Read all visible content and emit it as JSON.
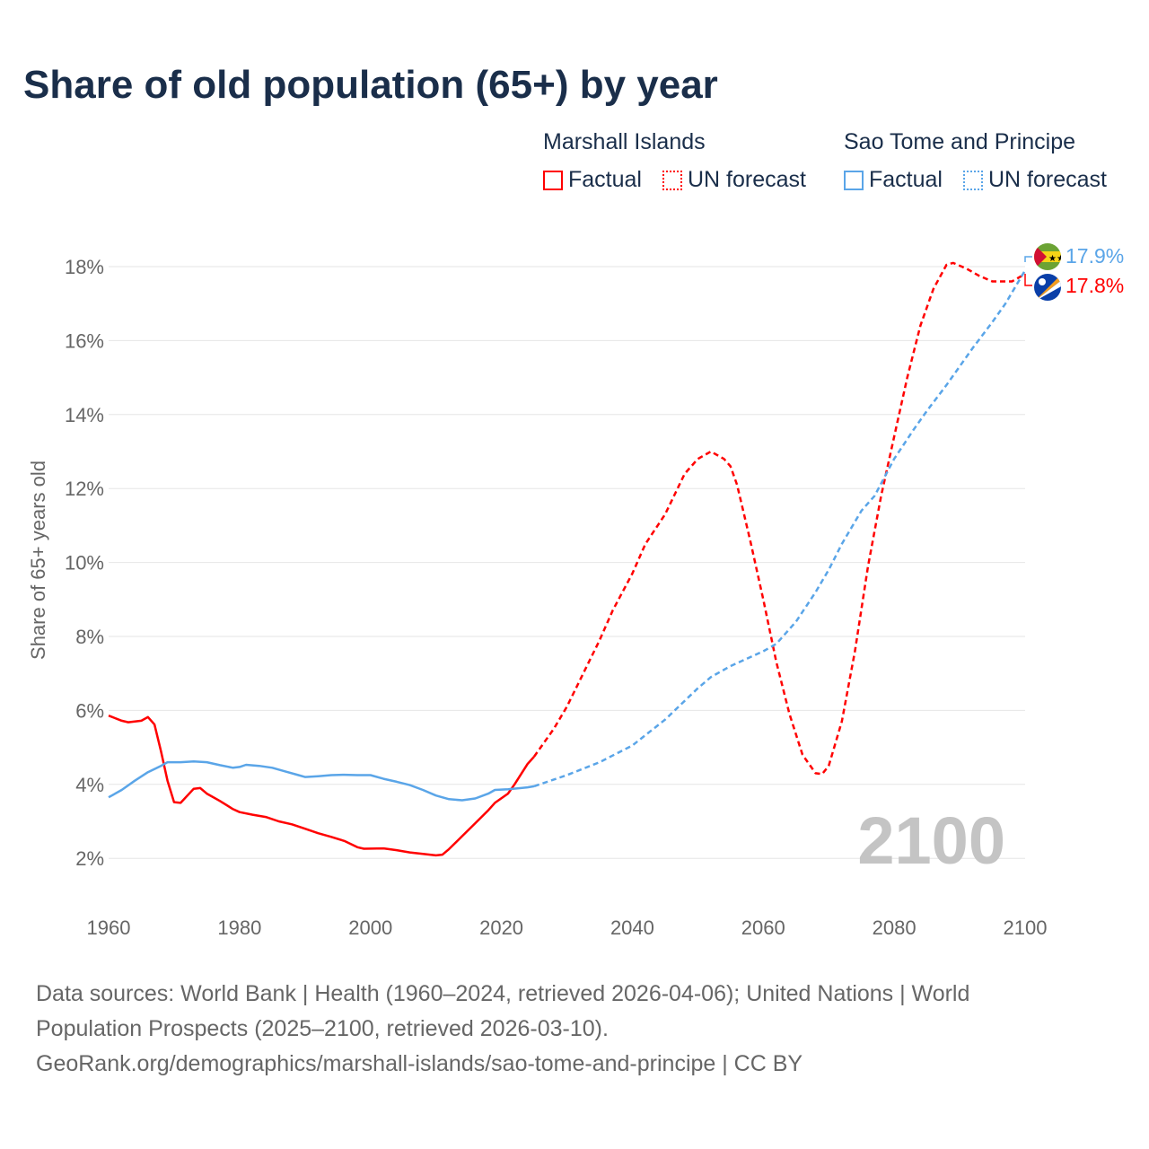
{
  "title": "Share of old population (65+) by year",
  "legend": {
    "groups": [
      {
        "name": "Marshall Islands",
        "color": "#ff0000",
        "factual": "Factual",
        "forecast": "UN forecast"
      },
      {
        "name": "Sao Tome and Principe",
        "color": "#5aa5e8",
        "factual": "Factual",
        "forecast": "UN forecast"
      }
    ]
  },
  "chart_data": {
    "type": "line",
    "title": "Share of old population (65+) by year",
    "xlabel": "",
    "ylabel": "Share of 65+ years old",
    "xlim": [
      1960,
      2100
    ],
    "ylim": [
      1,
      18.9
    ],
    "xticks": [
      1960,
      1980,
      2000,
      2020,
      2040,
      2060,
      2080,
      2100
    ],
    "yticks": [
      2,
      4,
      6,
      8,
      10,
      12,
      14,
      16,
      18
    ],
    "ytick_format": "%",
    "grid": true,
    "year_watermark": "2100",
    "series": [
      {
        "name": "Marshall Islands",
        "kind": "Factual",
        "color": "#ff0000",
        "x": [
          1960,
          1962,
          1963,
          1965,
          1966,
          1967,
          1968,
          1969,
          1970,
          1971,
          1973,
          1974,
          1975,
          1977,
          1979,
          1980,
          1982,
          1984,
          1986,
          1988,
          1990,
          1992,
          1994,
          1996,
          1998,
          1999,
          2002,
          2004,
          2006,
          2008,
          2010,
          2011,
          2012,
          2014,
          2016,
          2018,
          2019,
          2021,
          2022,
          2024,
          2025
        ],
        "y": [
          5.86,
          5.72,
          5.68,
          5.72,
          5.82,
          5.62,
          4.9,
          4.1,
          3.52,
          3.5,
          3.88,
          3.9,
          3.75,
          3.55,
          3.33,
          3.25,
          3.18,
          3.12,
          3.0,
          2.92,
          2.8,
          2.68,
          2.58,
          2.47,
          2.3,
          2.26,
          2.27,
          2.22,
          2.16,
          2.12,
          2.08,
          2.1,
          2.25,
          2.6,
          2.95,
          3.3,
          3.5,
          3.75,
          4.0,
          4.55,
          4.75
        ]
      },
      {
        "name": "Marshall Islands",
        "kind": "UN forecast",
        "color": "#ff0000",
        "x": [
          2025,
          2028,
          2030,
          2035,
          2037,
          2040,
          2042,
          2045,
          2048,
          2050,
          2052,
          2054,
          2055,
          2056,
          2058,
          2060,
          2062,
          2064,
          2066,
          2068,
          2069,
          2070,
          2072,
          2074,
          2076,
          2078,
          2080,
          2082,
          2084,
          2086,
          2088,
          2089,
          2091,
          2093,
          2095,
          2098,
          2100
        ],
        "y": [
          4.75,
          5.5,
          6.1,
          7.9,
          8.7,
          9.7,
          10.5,
          11.3,
          12.4,
          12.8,
          13.0,
          12.8,
          12.6,
          12.1,
          10.6,
          9.0,
          7.3,
          5.9,
          4.8,
          4.3,
          4.28,
          4.5,
          5.7,
          7.6,
          9.9,
          11.8,
          13.4,
          15.0,
          16.4,
          17.4,
          18.05,
          18.1,
          17.95,
          17.75,
          17.6,
          17.6,
          17.8
        ]
      },
      {
        "name": "Sao Tome and Principe",
        "kind": "Factual",
        "color": "#5aa5e8",
        "x": [
          1960,
          1962,
          1964,
          1966,
          1968,
          1969,
          1971,
          1973,
          1975,
          1977,
          1979,
          1980,
          1981,
          1983,
          1985,
          1987,
          1989,
          1990,
          1992,
          1994,
          1996,
          1998,
          2000,
          2002,
          2004,
          2006,
          2008,
          2010,
          2012,
          2014,
          2016,
          2018,
          2019,
          2021,
          2023,
          2024,
          2025
        ],
        "y": [
          3.65,
          3.85,
          4.1,
          4.33,
          4.5,
          4.6,
          4.6,
          4.62,
          4.6,
          4.52,
          4.45,
          4.47,
          4.53,
          4.5,
          4.45,
          4.35,
          4.25,
          4.2,
          4.22,
          4.25,
          4.26,
          4.25,
          4.25,
          4.15,
          4.07,
          3.98,
          3.85,
          3.7,
          3.6,
          3.57,
          3.62,
          3.75,
          3.85,
          3.87,
          3.9,
          3.92,
          3.95
        ]
      },
      {
        "name": "Sao Tome and Principe",
        "kind": "UN forecast",
        "color": "#5aa5e8",
        "x": [
          2025,
          2030,
          2035,
          2040,
          2045,
          2050,
          2052,
          2055,
          2060,
          2062,
          2065,
          2068,
          2070,
          2072,
          2075,
          2077,
          2080,
          2083,
          2085,
          2088,
          2090,
          2092,
          2095,
          2097,
          2100
        ],
        "y": [
          3.95,
          4.25,
          4.6,
          5.05,
          5.75,
          6.6,
          6.9,
          7.2,
          7.6,
          7.8,
          8.4,
          9.2,
          9.8,
          10.5,
          11.4,
          11.8,
          12.8,
          13.6,
          14.1,
          14.8,
          15.3,
          15.8,
          16.5,
          17.0,
          17.9
        ]
      }
    ],
    "end_labels": [
      {
        "series": "Sao Tome and Principe",
        "text": "17.9%",
        "color": "#5aa5e8"
      },
      {
        "series": "Marshall Islands",
        "text": "17.8%",
        "color": "#ff0000"
      }
    ]
  },
  "footer": {
    "line1": "Data sources: World Bank | Health (1960–2024, retrieved 2026-04-06); United Nations | World",
    "line2": "Population Prospects (2025–2100, retrieved 2026-03-10).",
    "line3": "GeoRank.org/demographics/marshall-islands/sao-tome-and-principe | CC BY"
  }
}
